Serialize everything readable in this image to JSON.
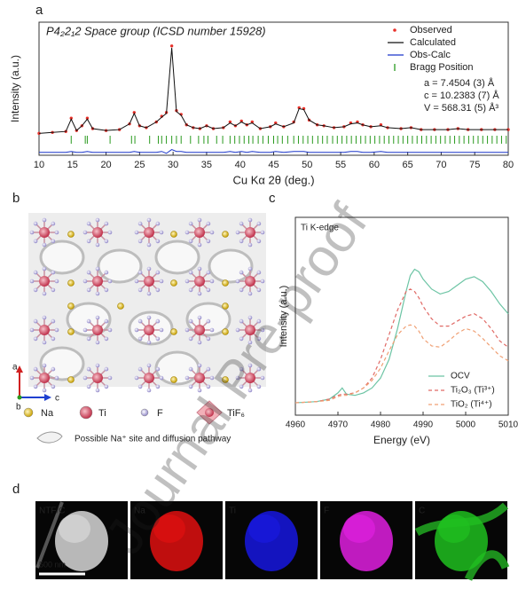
{
  "panels": [
    "a",
    "b",
    "c",
    "d"
  ],
  "chart_data": [
    {
      "type": "line",
      "title": "P4₂2₁2 Space group (ICSD number 15928)",
      "x_label": "Cu Kα 2θ (deg.)",
      "y_label": "Intensity (a.u.)",
      "xlim": [
        10,
        80
      ],
      "ylim": [
        -15,
        125
      ],
      "xticks": [
        10,
        15,
        20,
        25,
        30,
        35,
        40,
        45,
        50,
        55,
        60,
        65,
        70,
        75,
        80
      ],
      "legend": "upper right",
      "annotations": [
        "a = 7.4504 (3) Å",
        "c = 10.2383 (7) Å",
        "V = 568.31 (5) Å³"
      ],
      "x": [
        10,
        12,
        14,
        14.8,
        15.6,
        16.4,
        17.2,
        18,
        20,
        22,
        23.5,
        24.2,
        25,
        26,
        27.5,
        28.3,
        29,
        29.8,
        30.5,
        31.2,
        32,
        33,
        34,
        35,
        36,
        37.5,
        38.5,
        39.3,
        40.2,
        41,
        41.8,
        43,
        44.5,
        45.3,
        46.5,
        48,
        48.8,
        49.5,
        50.3,
        51.5,
        52.5,
        54,
        55.5,
        56.5,
        57.5,
        58.3,
        59.5,
        61,
        62,
        64,
        65.5,
        67,
        69,
        71,
        72.5,
        74,
        76,
        78,
        80
      ],
      "series": [
        {
          "name": "Observed",
          "color": "#e8312a",
          "style": "dots",
          "values": [
            8,
            9,
            10,
            24,
            11,
            16,
            24,
            13,
            11,
            12,
            18,
            30,
            16,
            14,
            20,
            26,
            30,
            100,
            32,
            28,
            17,
            14,
            13,
            16,
            13,
            14,
            20,
            16,
            21,
            17,
            20,
            13,
            15,
            19,
            15,
            20,
            35,
            34,
            22,
            17,
            16,
            14,
            15,
            19,
            20,
            17,
            15,
            17,
            14,
            13,
            14,
            12,
            12,
            12,
            13,
            12,
            12,
            12,
            12
          ]
        },
        {
          "name": "Calculated",
          "color": "#111111",
          "style": "solid",
          "values": [
            8,
            9,
            10,
            23,
            11,
            16,
            23,
            13,
            11,
            12,
            18,
            29,
            16,
            14,
            20,
            25,
            29,
            98,
            31,
            27,
            17,
            14,
            13,
            16,
            13,
            14,
            19,
            16,
            20,
            17,
            19,
            13,
            15,
            18,
            15,
            19,
            34,
            33,
            22,
            17,
            16,
            14,
            15,
            18,
            19,
            17,
            15,
            16,
            14,
            13,
            14,
            12,
            12,
            12,
            13,
            12,
            12,
            12,
            12
          ]
        },
        {
          "name": "Obs-Calc",
          "color": "#1a35c9",
          "style": "solid",
          "values": [
            -12,
            -12,
            -12,
            -11,
            -12,
            -12,
            -11,
            -12,
            -12,
            -12,
            -12,
            -11,
            -12,
            -12,
            -12,
            -11,
            -13,
            -9,
            -11,
            -11,
            -12,
            -12,
            -12,
            -12,
            -12,
            -12,
            -11,
            -12,
            -11,
            -12,
            -11,
            -12,
            -12,
            -11,
            -12,
            -11,
            -11,
            -11,
            -12,
            -12,
            -12,
            -12,
            -12,
            -11,
            -11,
            -12,
            -12,
            -11,
            -12,
            -12,
            -12,
            -12,
            -12,
            -12,
            -12,
            -12,
            -12,
            -12,
            -12
          ]
        }
      ],
      "bragg": {
        "name": "Bragg Position",
        "color": "#2a9a1f",
        "x": [
          14.8,
          16.9,
          17.2,
          20.6,
          23.8,
          24.3,
          26.5,
          27.8,
          28.3,
          29.0,
          29.8,
          30.5,
          31.2,
          32.6,
          33.8,
          34.6,
          35.2,
          36.5,
          37.4,
          38.5,
          39.2,
          39.9,
          40.6,
          41.3,
          41.9,
          42.7,
          43.4,
          44.2,
          45.0,
          45.6,
          46.3,
          47.1,
          48.0,
          48.7,
          49.4,
          50.1,
          50.8,
          51.6,
          52.3,
          53.0,
          53.8,
          54.5,
          55.2,
          55.9,
          56.6,
          57.3,
          58.0,
          58.7,
          59.4,
          60.1,
          60.8,
          61.5,
          62.2,
          62.9,
          63.6,
          64.3,
          65.0,
          65.7,
          66.4,
          67.1,
          67.8,
          68.5,
          69.2,
          69.9,
          70.6,
          71.3,
          72.0,
          72.7,
          73.4,
          74.1,
          74.8,
          75.5,
          76.2,
          76.9,
          77.6,
          78.3,
          79.0,
          79.7
        ]
      }
    },
    {
      "type": "line",
      "x_label": "Energy (eV)",
      "y_label": "Intensity (a.u.)",
      "annotations": [
        "Ti K-edge"
      ],
      "xlim": [
        4960,
        5010
      ],
      "ylim": [
        -0.1,
        1.5
      ],
      "xticks": [
        4960,
        4970,
        4980,
        4990,
        5000,
        5010
      ],
      "legend": "lower right",
      "x": [
        4960,
        4965,
        4968,
        4970,
        4971,
        4972,
        4974,
        4976,
        4978,
        4980,
        4982,
        4984,
        4986,
        4987,
        4988,
        4989,
        4990,
        4992,
        4994,
        4996,
        4998,
        5000,
        5002,
        5004,
        5006,
        5008,
        5010
      ],
      "series": [
        {
          "name": "OCV",
          "color": "#6cc4a4",
          "style": "solid",
          "values": [
            0,
            0.01,
            0.03,
            0.08,
            0.12,
            0.07,
            0.06,
            0.08,
            0.12,
            0.2,
            0.35,
            0.6,
            0.9,
            1.03,
            1.08,
            1.06,
            1.0,
            0.92,
            0.88,
            0.9,
            0.95,
            1.0,
            1.02,
            0.98,
            0.9,
            0.8,
            0.72
          ]
        },
        {
          "name": "Ti₂O₃ (Ti³⁺)",
          "color": "#e06a66",
          "style": "dashed",
          "values": [
            0,
            0.01,
            0.03,
            0.06,
            0.07,
            0.07,
            0.08,
            0.12,
            0.2,
            0.35,
            0.55,
            0.75,
            0.9,
            0.92,
            0.9,
            0.85,
            0.78,
            0.68,
            0.62,
            0.62,
            0.66,
            0.7,
            0.72,
            0.68,
            0.6,
            0.5,
            0.45
          ]
        },
        {
          "name": "TiO₂ (Ti⁴⁺)",
          "color": "#f0a074",
          "style": "dashed",
          "values": [
            0,
            0.01,
            0.02,
            0.05,
            0.06,
            0.06,
            0.08,
            0.12,
            0.18,
            0.28,
            0.42,
            0.55,
            0.62,
            0.63,
            0.62,
            0.58,
            0.52,
            0.46,
            0.45,
            0.5,
            0.56,
            0.6,
            0.58,
            0.52,
            0.45,
            0.38,
            0.34
          ]
        }
      ]
    }
  ],
  "structure": {
    "axes": [
      "a",
      "b",
      "c"
    ],
    "legend": [
      "Na",
      "Ti",
      "F",
      "TiF₆"
    ],
    "pathway": "Possible Na⁺ site and diffusion pathway"
  },
  "maps": {
    "labels": [
      "NTF/C",
      "Na",
      "Ti",
      "F",
      "C"
    ],
    "scale_bar": "500 nm"
  },
  "watermark": "Journal Pre-proof"
}
